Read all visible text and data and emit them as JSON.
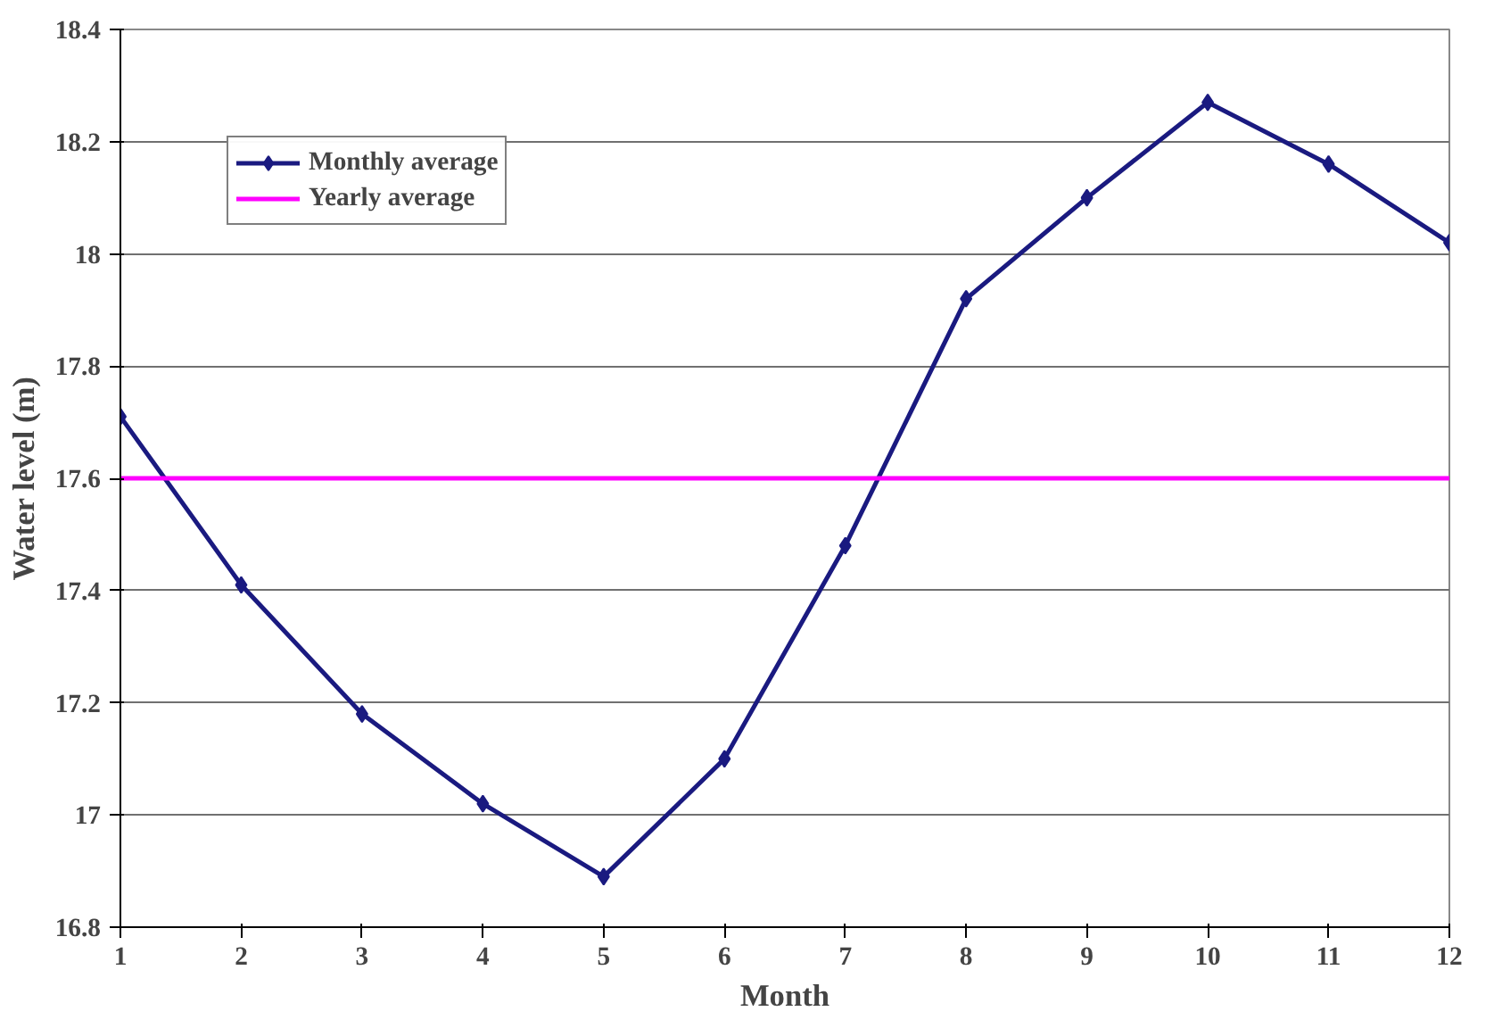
{
  "chart_data": {
    "type": "line",
    "xlabel": "Month",
    "ylabel": "Water level (m)",
    "x": [
      1,
      2,
      3,
      4,
      5,
      6,
      7,
      8,
      9,
      10,
      11,
      12
    ],
    "series": [
      {
        "name": "Monthly average",
        "color": "#1a1a80",
        "marker": "diamond",
        "values": [
          17.71,
          17.41,
          17.18,
          17.02,
          16.89,
          17.1,
          17.48,
          17.92,
          18.1,
          18.27,
          18.16,
          18.02
        ]
      },
      {
        "name": "Yearly average",
        "color": "#ff00ff",
        "marker": "none",
        "values": [
          17.6,
          17.6,
          17.6,
          17.6,
          17.6,
          17.6,
          17.6,
          17.6,
          17.6,
          17.6,
          17.6,
          17.6
        ]
      }
    ],
    "xlim": [
      1,
      12
    ],
    "xticks": [
      1,
      2,
      3,
      4,
      5,
      6,
      7,
      8,
      9,
      10,
      11,
      12
    ],
    "ylim": [
      16.8,
      18.4
    ],
    "yticks": [
      {
        "value": 16.8,
        "label": "16.8"
      },
      17,
      {
        "value": 17.2,
        "label": "17.2"
      },
      {
        "value": 17.4,
        "label": "17.4"
      },
      {
        "value": 17.6,
        "label": "17.6"
      },
      {
        "value": 17.8,
        "label": "17.8"
      },
      18,
      {
        "value": 18.2,
        "label": "18.2"
      },
      {
        "value": 18.4,
        "label": "18.4"
      }
    ],
    "grid": "y",
    "legend": "top left"
  }
}
